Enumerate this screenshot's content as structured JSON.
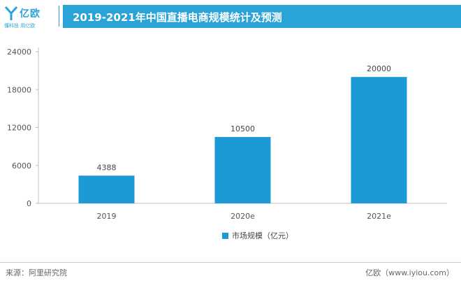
{
  "brand": {
    "name": "亿欧",
    "tagline": "懂科技 用亿欧",
    "color": "#2aa3d9"
  },
  "header": {
    "title": "2019-2021年中国直播电商规模统计及预测"
  },
  "chart_data": {
    "type": "bar",
    "categories": [
      "2019",
      "2020e",
      "2021e"
    ],
    "series": [
      {
        "name": "市场规模（亿元）",
        "values": [
          4388,
          10500,
          20000
        ],
        "color": "#1b9ad6"
      }
    ],
    "yticks": [
      "0",
      "6000",
      "12000",
      "18000",
      "24000"
    ],
    "ylim": [
      0,
      24000
    ],
    "data_labels": [
      "4388",
      "10500",
      "20000"
    ],
    "legend_position": "bottom",
    "grid": false
  },
  "footer": {
    "source": "来源：阿里研究院",
    "credit": "亿欧（www.iyiou.com）"
  }
}
